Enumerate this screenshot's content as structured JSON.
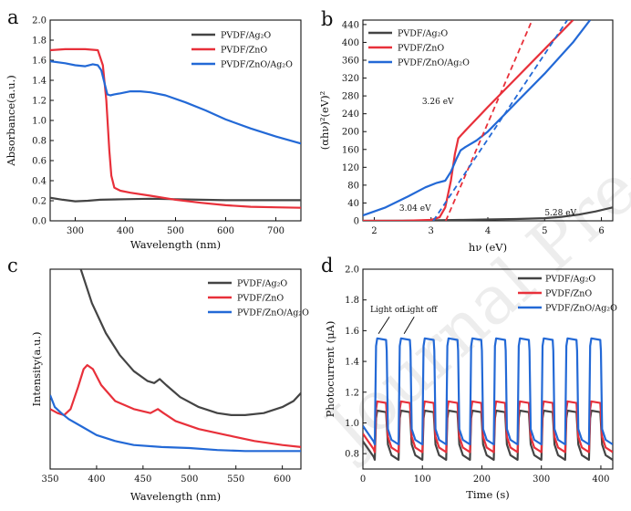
{
  "watermark": "Journal Pre-proof",
  "colors": {
    "ag2o": "#444444",
    "zno": "#e8303a",
    "comp": "#2369d6",
    "axis": "#111111"
  },
  "chart_data": [
    {
      "panel": "a",
      "type": "line",
      "xlabel": "Wavelength (nm)",
      "ylabel": "Absorbance(a.u.)",
      "xlim": [
        250,
        750
      ],
      "ylim": [
        0.0,
        2.0
      ],
      "xticks": [
        300,
        400,
        500,
        600,
        700
      ],
      "yticks": [
        0.0,
        0.2,
        0.4,
        0.6,
        0.8,
        1.0,
        1.2,
        1.4,
        1.6,
        1.8,
        2.0
      ],
      "legend_position": "top-right",
      "series": [
        {
          "name": "PVDF/Ag₂O",
          "color": "#444444",
          "x": [
            250,
            275,
            300,
            325,
            350,
            400,
            450,
            500,
            550,
            600,
            650,
            700,
            750
          ],
          "y": [
            0.23,
            0.21,
            0.195,
            0.2,
            0.21,
            0.215,
            0.22,
            0.215,
            0.21,
            0.205,
            0.205,
            0.205,
            0.205
          ]
        },
        {
          "name": "PVDF/ZnO",
          "color": "#e8303a",
          "x": [
            250,
            280,
            320,
            345,
            355,
            362,
            368,
            372,
            378,
            390,
            410,
            450,
            500,
            550,
            600,
            650,
            700,
            750
          ],
          "y": [
            1.7,
            1.71,
            1.71,
            1.7,
            1.55,
            1.2,
            0.7,
            0.45,
            0.33,
            0.3,
            0.28,
            0.25,
            0.21,
            0.18,
            0.155,
            0.14,
            0.135,
            0.13
          ]
        },
        {
          "name": "PVDF/ZnO/Ag₂O",
          "color": "#2369d6",
          "x": [
            250,
            280,
            300,
            320,
            335,
            345,
            352,
            358,
            364,
            370,
            378,
            390,
            410,
            430,
            450,
            480,
            520,
            560,
            600,
            650,
            700,
            750
          ],
          "y": [
            1.59,
            1.57,
            1.55,
            1.54,
            1.56,
            1.55,
            1.5,
            1.38,
            1.26,
            1.25,
            1.26,
            1.27,
            1.29,
            1.29,
            1.28,
            1.25,
            1.18,
            1.1,
            1.01,
            0.92,
            0.84,
            0.77
          ]
        }
      ]
    },
    {
      "panel": "b",
      "type": "line",
      "xlabel": "hν (eV)",
      "ylabel": "(αhν)²(eV)²",
      "xlim": [
        1.8,
        6.2
      ],
      "ylim": [
        0,
        450
      ],
      "xticks": [
        2,
        3,
        4,
        5,
        6
      ],
      "yticks": [
        0,
        40,
        80,
        120,
        160,
        200,
        240,
        280,
        320,
        360,
        400,
        440
      ],
      "legend_position": "top-left",
      "annotations": [
        "3.26 eV",
        "3.04 eV",
        "5.28 eV"
      ],
      "series": [
        {
          "name": "PVDF/Ag₂O",
          "color": "#444444",
          "x": [
            1.8,
            2.5,
            3.0,
            3.5,
            4.0,
            4.5,
            5.0,
            5.3,
            5.6,
            5.9,
            6.2
          ],
          "y": [
            0,
            0.5,
            1,
            2,
            3,
            4,
            6,
            9,
            14,
            21,
            30
          ]
        },
        {
          "name": "PVDF/ZnO",
          "color": "#e8303a",
          "x": [
            1.8,
            2.5,
            3.0,
            3.15,
            3.25,
            3.35,
            3.42,
            3.48,
            3.55,
            3.7,
            4.0,
            4.5,
            5.0,
            5.5
          ],
          "y": [
            0,
            0,
            2,
            8,
            30,
            90,
            150,
            185,
            195,
            215,
            255,
            320,
            385,
            450
          ]
        },
        {
          "name": "PVDF/ZnO/Ag₂O",
          "color": "#2369d6",
          "x": [
            1.8,
            2.2,
            2.6,
            2.9,
            3.1,
            3.25,
            3.35,
            3.45,
            3.52,
            3.6,
            3.8,
            4.0,
            4.5,
            5.0,
            5.5,
            5.8
          ],
          "y": [
            12,
            30,
            55,
            75,
            85,
            90,
            110,
            140,
            158,
            165,
            180,
            200,
            265,
            330,
            400,
            450
          ]
        },
        {
          "name": "",
          "color": "#e8303a",
          "style": "dashed",
          "x": [
            3.26,
            4.78
          ],
          "y": [
            0,
            450
          ]
        },
        {
          "name": "",
          "color": "#2369d6",
          "style": "dashed",
          "x": [
            3.04,
            5.4
          ],
          "y": [
            0,
            450
          ]
        }
      ]
    },
    {
      "panel": "c",
      "type": "line",
      "xlabel": "Wavelength (nm)",
      "ylabel": "Intensity(a.u.)",
      "xlim": [
        350,
        620
      ],
      "xticks": [
        350,
        400,
        450,
        500,
        550,
        600
      ],
      "yticks": [],
      "ylim": [
        0,
        1
      ],
      "legend_position": "top-right",
      "series": [
        {
          "name": "PVDF/Ag₂O",
          "color": "#444444",
          "x": [
            383,
            395,
            410,
            425,
            440,
            455,
            462,
            468,
            475,
            490,
            510,
            530,
            545,
            560,
            580,
            600,
            612,
            620
          ],
          "y": [
            1.0,
            0.83,
            0.68,
            0.57,
            0.49,
            0.44,
            0.43,
            0.45,
            0.42,
            0.36,
            0.31,
            0.28,
            0.27,
            0.27,
            0.28,
            0.31,
            0.34,
            0.38
          ]
        },
        {
          "name": "PVDF/ZnO",
          "color": "#e8303a",
          "x": [
            350,
            358,
            365,
            372,
            380,
            386,
            390,
            396,
            405,
            420,
            440,
            458,
            466,
            472,
            485,
            510,
            540,
            570,
            600,
            620
          ],
          "y": [
            0.3,
            0.28,
            0.27,
            0.3,
            0.41,
            0.5,
            0.52,
            0.5,
            0.42,
            0.34,
            0.3,
            0.28,
            0.3,
            0.28,
            0.24,
            0.2,
            0.17,
            0.14,
            0.12,
            0.11
          ]
        },
        {
          "name": "PVDF/ZnO/Ag₂O",
          "color": "#2369d6",
          "x": [
            350,
            355,
            362,
            370,
            385,
            400,
            420,
            440,
            470,
            500,
            530,
            560,
            590,
            620
          ],
          "y": [
            0.37,
            0.31,
            0.28,
            0.25,
            0.21,
            0.17,
            0.14,
            0.12,
            0.11,
            0.105,
            0.095,
            0.09,
            0.09,
            0.09
          ]
        }
      ]
    },
    {
      "panel": "d",
      "type": "line",
      "xlabel": "Time (s)",
      "ylabel": "Photocurrent (μA)",
      "xlim": [
        0,
        420
      ],
      "ylim": [
        0.7,
        2.0
      ],
      "xticks": [
        0,
        100,
        200,
        300,
        400
      ],
      "yticks": [
        0.8,
        1.0,
        1.2,
        1.4,
        1.6,
        1.8,
        2.0
      ],
      "legend_position": "top-right",
      "annotations": [
        "Light on",
        "Light off"
      ],
      "cycle": {
        "period_s": 40,
        "on_duration_s": 20,
        "first_on_s": 20,
        "cycles": 10
      },
      "series": [
        {
          "name": "PVDF/Ag₂O",
          "color": "#444444",
          "light_on_level": 1.08,
          "light_off_level": 0.76
        },
        {
          "name": "PVDF/ZnO",
          "color": "#e8303a",
          "light_on_level": 1.14,
          "light_off_level": 0.81
        },
        {
          "name": "PVDF/ZnO/Ag₂O",
          "color": "#2369d6",
          "light_on_level": 1.55,
          "light_off_level": 0.86
        }
      ]
    }
  ]
}
